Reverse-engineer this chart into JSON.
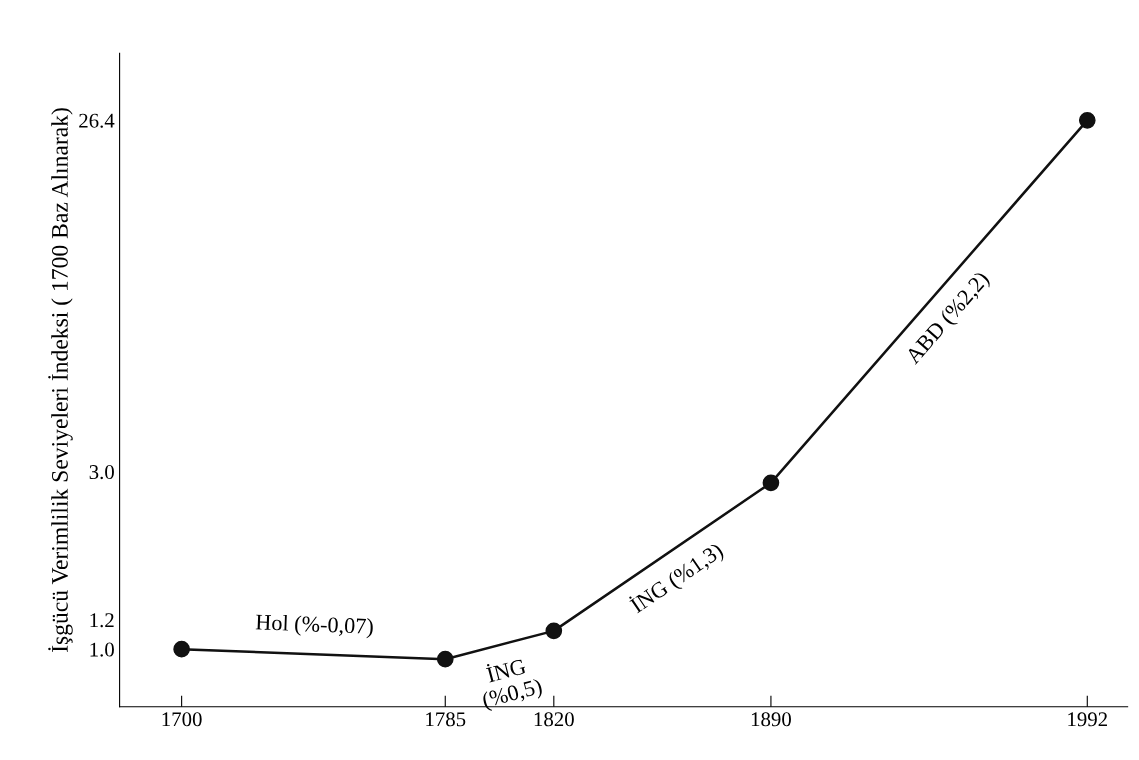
{
  "chart_data": {
    "type": "line",
    "ylabel": "İşgücü Verimlilik Seviyeleri İndeksi ( 1700 Baz Alınarak)",
    "x": [
      1700,
      1785,
      1820,
      1890,
      1992
    ],
    "series": [
      {
        "color": "#111111",
        "values": [
          1.0,
          0.94,
          1.12,
          2.8,
          26.4
        ]
      }
    ],
    "marker": "circle",
    "line_style": "solid",
    "log": "y",
    "grid": false,
    "xlim": [
      1680,
      2005
    ],
    "xticks": [
      1700,
      1785,
      1820,
      1890,
      1992
    ],
    "ylim": [
      0.7,
      40
    ],
    "yticks": [
      {
        "value": 1.0,
        "label": "1.0"
      },
      {
        "value": 1.2,
        "label": "1.2"
      },
      {
        "value": 3.0,
        "label": "3.0"
      },
      26.4
    ],
    "annotations": [
      "Hol (%-0,07)",
      "İNG\n(%0,5)",
      "İNG (%1,3)",
      "ABD (%2,2)"
    ]
  }
}
